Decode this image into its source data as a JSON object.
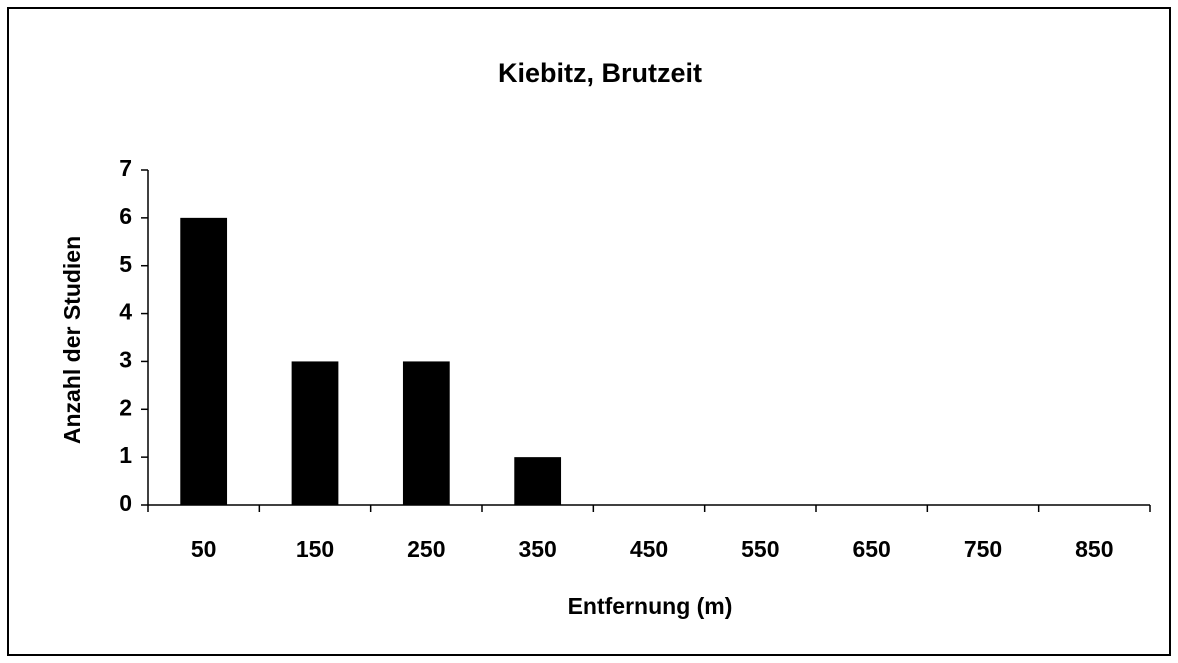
{
  "chart_data": {
    "type": "bar",
    "title": "Kiebitz, Brutzeit",
    "x_label": "Entfernung (m)",
    "y_label": "Anzahl der Studien",
    "categories": [
      "50",
      "150",
      "250",
      "350",
      "450",
      "550",
      "650",
      "750",
      "850"
    ],
    "values": [
      6,
      3,
      3,
      1,
      0,
      0,
      0,
      0,
      0
    ],
    "color": "#000000",
    "ylim": [
      0,
      7
    ],
    "yticks": [
      0,
      1,
      2,
      3,
      4,
      5,
      6,
      7
    ],
    "grid": false
  }
}
